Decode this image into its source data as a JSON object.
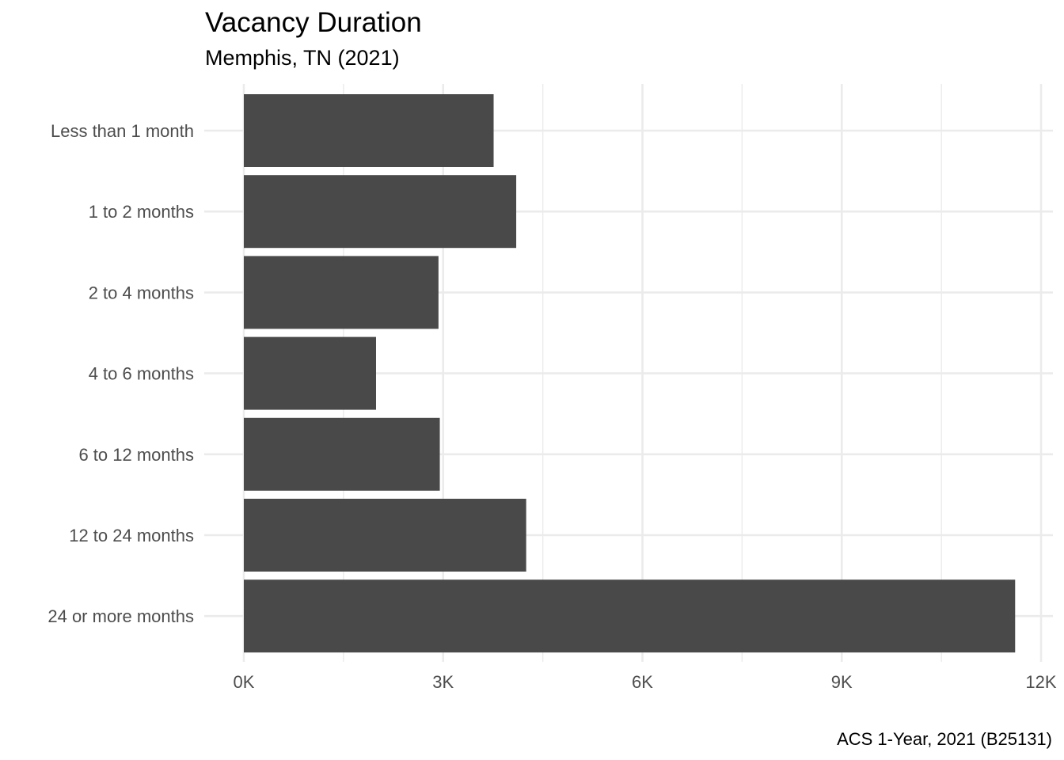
{
  "chart_data": {
    "type": "bar",
    "orientation": "horizontal",
    "title": "Vacancy Duration",
    "subtitle": "Memphis, TN (2021)",
    "caption": "ACS 1-Year, 2021 (B25131)",
    "xlabel": "",
    "ylabel": "",
    "categories": [
      "Less than 1 month",
      "1 to 2 months",
      "2 to 4 months",
      "4 to 6 months",
      "6 to 12 months",
      "12 to 24 months",
      "24 or more months"
    ],
    "values": [
      3760,
      4100,
      2930,
      1990,
      2950,
      4250,
      11610
    ],
    "xlim": [
      0,
      12000
    ],
    "x_ticks": [
      0,
      3000,
      6000,
      9000,
      12000
    ],
    "x_tick_labels": [
      "0K",
      "3K",
      "6K",
      "9K",
      "12K"
    ],
    "grid": true,
    "legend": "none",
    "bar_color": "#494949",
    "grid_color": "#ebebeb"
  }
}
